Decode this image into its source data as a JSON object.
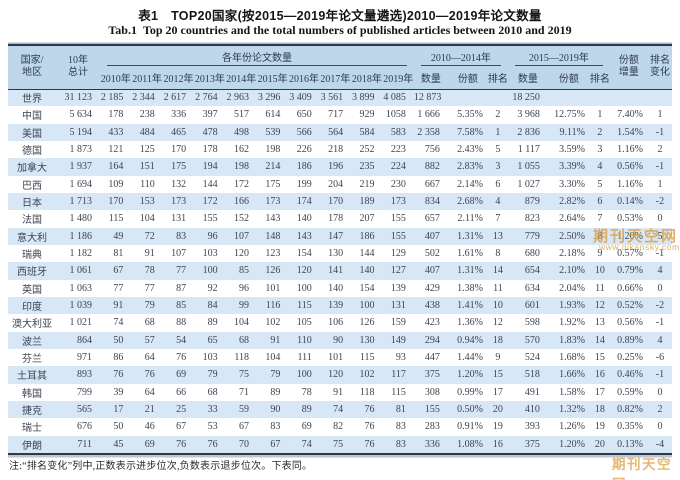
{
  "title": {
    "cn": "表1　TOP20国家(按2015—2019年论文量遴选)2010—2019年论文数量",
    "en": "Tab.1  Top 20 countries and the total numbers of published articles between 2010 and 2019"
  },
  "table": {
    "header": {
      "country_l1": "国家/",
      "country_l2": "地区",
      "total_l1": "10年",
      "total_l2": "总计",
      "yearly_group": "各年份论文数量",
      "years": [
        "2010年",
        "2011年",
        "2012年",
        "2013年",
        "2014年",
        "2015年",
        "2016年",
        "2017年",
        "2018年",
        "2019年"
      ],
      "p1_group": "2010—2014年",
      "p2_group": "2015—2019年",
      "count": "数量",
      "share": "份额",
      "rank": "排名",
      "share_inc_l1": "份额",
      "share_inc_l2": "增量",
      "rank_change_l1": "排名",
      "rank_change_l2": "变化"
    },
    "rows": [
      {
        "country": "世界",
        "total": "31 123",
        "years": [
          "2 185",
          "2 344",
          "2 617",
          "2 764",
          "2 963",
          "3 296",
          "3 409",
          "3 561",
          "3 899",
          "4 085"
        ],
        "p1_count": "12 873",
        "p1_share": "",
        "p1_rank": "",
        "p2_count": "18 250",
        "p2_share": "",
        "p2_rank": "",
        "share_inc": "",
        "rank_change": ""
      },
      {
        "country": "中国",
        "total": "5 634",
        "years": [
          "178",
          "238",
          "336",
          "397",
          "517",
          "614",
          "650",
          "717",
          "929",
          "1058"
        ],
        "p1_count": "1 666",
        "p1_share": "5.35%",
        "p1_rank": "2",
        "p2_count": "3 968",
        "p2_share": "12.75%",
        "p2_rank": "1",
        "share_inc": "7.40%",
        "rank_change": "1"
      },
      {
        "country": "美国",
        "total": "5 194",
        "years": [
          "433",
          "484",
          "465",
          "478",
          "498",
          "539",
          "566",
          "564",
          "584",
          "583"
        ],
        "p1_count": "2 358",
        "p1_share": "7.58%",
        "p1_rank": "1",
        "p2_count": "2 836",
        "p2_share": "9.11%",
        "p2_rank": "2",
        "share_inc": "1.54%",
        "rank_change": "-1"
      },
      {
        "country": "德国",
        "total": "1 873",
        "years": [
          "121",
          "125",
          "170",
          "178",
          "162",
          "198",
          "226",
          "218",
          "252",
          "223"
        ],
        "p1_count": "756",
        "p1_share": "2.43%",
        "p1_rank": "5",
        "p2_count": "1 117",
        "p2_share": "3.59%",
        "p2_rank": "3",
        "share_inc": "1.16%",
        "rank_change": "2"
      },
      {
        "country": "加拿大",
        "total": "1 937",
        "years": [
          "164",
          "151",
          "175",
          "194",
          "198",
          "214",
          "186",
          "196",
          "235",
          "224"
        ],
        "p1_count": "882",
        "p1_share": "2.83%",
        "p1_rank": "3",
        "p2_count": "1 055",
        "p2_share": "3.39%",
        "p2_rank": "4",
        "share_inc": "0.56%",
        "rank_change": "-1"
      },
      {
        "country": "巴西",
        "total": "1 694",
        "years": [
          "109",
          "110",
          "132",
          "144",
          "172",
          "175",
          "199",
          "204",
          "219",
          "230"
        ],
        "p1_count": "667",
        "p1_share": "2.14%",
        "p1_rank": "6",
        "p2_count": "1 027",
        "p2_share": "3.30%",
        "p2_rank": "5",
        "share_inc": "1.16%",
        "rank_change": "1"
      },
      {
        "country": "日本",
        "total": "1 713",
        "years": [
          "170",
          "153",
          "173",
          "172",
          "166",
          "173",
          "174",
          "170",
          "189",
          "173"
        ],
        "p1_count": "834",
        "p1_share": "2.68%",
        "p1_rank": "4",
        "p2_count": "879",
        "p2_share": "2.82%",
        "p2_rank": "6",
        "share_inc": "0.14%",
        "rank_change": "-2"
      },
      {
        "country": "法国",
        "total": "1 480",
        "years": [
          "115",
          "104",
          "131",
          "155",
          "152",
          "143",
          "140",
          "178",
          "207",
          "155"
        ],
        "p1_count": "657",
        "p1_share": "2.11%",
        "p1_rank": "7",
        "p2_count": "823",
        "p2_share": "2.64%",
        "p2_rank": "7",
        "share_inc": "0.53%",
        "rank_change": "0"
      },
      {
        "country": "意大利",
        "total": "1 186",
        "years": [
          "49",
          "72",
          "83",
          "96",
          "107",
          "148",
          "143",
          "147",
          "186",
          "155"
        ],
        "p1_count": "407",
        "p1_share": "1.31%",
        "p1_rank": "13",
        "p2_count": "779",
        "p2_share": "2.50%",
        "p2_rank": "8",
        "share_inc": "1.20%",
        "rank_change": "5"
      },
      {
        "country": "瑞典",
        "total": "1 182",
        "years": [
          "81",
          "91",
          "107",
          "103",
          "120",
          "123",
          "154",
          "130",
          "144",
          "129"
        ],
        "p1_count": "502",
        "p1_share": "1.61%",
        "p1_rank": "8",
        "p2_count": "680",
        "p2_share": "2.18%",
        "p2_rank": "9",
        "share_inc": "0.57%",
        "rank_change": "-1"
      },
      {
        "country": "西班牙",
        "total": "1 061",
        "years": [
          "67",
          "78",
          "77",
          "100",
          "85",
          "126",
          "120",
          "141",
          "140",
          "127"
        ],
        "p1_count": "407",
        "p1_share": "1.31%",
        "p1_rank": "14",
        "p2_count": "654",
        "p2_share": "2.10%",
        "p2_rank": "10",
        "share_inc": "0.79%",
        "rank_change": "4"
      },
      {
        "country": "英国",
        "total": "1 063",
        "years": [
          "77",
          "77",
          "87",
          "92",
          "96",
          "101",
          "100",
          "140",
          "154",
          "139"
        ],
        "p1_count": "429",
        "p1_share": "1.38%",
        "p1_rank": "11",
        "p2_count": "634",
        "p2_share": "2.04%",
        "p2_rank": "11",
        "share_inc": "0.66%",
        "rank_change": "0"
      },
      {
        "country": "印度",
        "total": "1 039",
        "years": [
          "91",
          "79",
          "85",
          "84",
          "99",
          "116",
          "115",
          "139",
          "100",
          "131"
        ],
        "p1_count": "438",
        "p1_share": "1.41%",
        "p1_rank": "10",
        "p2_count": "601",
        "p2_share": "1.93%",
        "p2_rank": "12",
        "share_inc": "0.52%",
        "rank_change": "-2"
      },
      {
        "country": "澳大利亚",
        "total": "1 021",
        "years": [
          "74",
          "68",
          "88",
          "89",
          "104",
          "102",
          "105",
          "106",
          "126",
          "159"
        ],
        "p1_count": "423",
        "p1_share": "1.36%",
        "p1_rank": "12",
        "p2_count": "598",
        "p2_share": "1.92%",
        "p2_rank": "13",
        "share_inc": "0.56%",
        "rank_change": "-1"
      },
      {
        "country": "波兰",
        "total": "864",
        "years": [
          "50",
          "57",
          "54",
          "65",
          "68",
          "91",
          "110",
          "90",
          "130",
          "149"
        ],
        "p1_count": "294",
        "p1_share": "0.94%",
        "p1_rank": "18",
        "p2_count": "570",
        "p2_share": "1.83%",
        "p2_rank": "14",
        "share_inc": "0.89%",
        "rank_change": "4"
      },
      {
        "country": "芬兰",
        "total": "971",
        "years": [
          "86",
          "64",
          "76",
          "103",
          "118",
          "104",
          "111",
          "101",
          "115",
          "93"
        ],
        "p1_count": "447",
        "p1_share": "1.44%",
        "p1_rank": "9",
        "p2_count": "524",
        "p2_share": "1.68%",
        "p2_rank": "15",
        "share_inc": "0.25%",
        "rank_change": "-6"
      },
      {
        "country": "土耳其",
        "total": "893",
        "years": [
          "76",
          "76",
          "69",
          "79",
          "75",
          "79",
          "100",
          "120",
          "102",
          "117"
        ],
        "p1_count": "375",
        "p1_share": "1.20%",
        "p1_rank": "15",
        "p2_count": "518",
        "p2_share": "1.66%",
        "p2_rank": "16",
        "share_inc": "0.46%",
        "rank_change": "-1"
      },
      {
        "country": "韩国",
        "total": "799",
        "years": [
          "39",
          "64",
          "66",
          "68",
          "71",
          "89",
          "78",
          "91",
          "118",
          "115"
        ],
        "p1_count": "308",
        "p1_share": "0.99%",
        "p1_rank": "17",
        "p2_count": "491",
        "p2_share": "1.58%",
        "p2_rank": "17",
        "share_inc": "0.59%",
        "rank_change": "0"
      },
      {
        "country": "捷克",
        "total": "565",
        "years": [
          "17",
          "21",
          "25",
          "33",
          "59",
          "90",
          "89",
          "74",
          "76",
          "81"
        ],
        "p1_count": "155",
        "p1_share": "0.50%",
        "p1_rank": "20",
        "p2_count": "410",
        "p2_share": "1.32%",
        "p2_rank": "18",
        "share_inc": "0.82%",
        "rank_change": "2"
      },
      {
        "country": "瑞士",
        "total": "676",
        "years": [
          "50",
          "46",
          "67",
          "53",
          "67",
          "83",
          "69",
          "82",
          "76",
          "83"
        ],
        "p1_count": "283",
        "p1_share": "0.91%",
        "p1_rank": "19",
        "p2_count": "393",
        "p2_share": "1.26%",
        "p2_rank": "19",
        "share_inc": "0.35%",
        "rank_change": "0"
      },
      {
        "country": "伊朗",
        "total": "711",
        "years": [
          "45",
          "69",
          "76",
          "76",
          "70",
          "67",
          "74",
          "75",
          "76",
          "83"
        ],
        "p1_count": "336",
        "p1_share": "1.08%",
        "p1_rank": "16",
        "p2_count": "375",
        "p2_share": "1.20%",
        "p2_rank": "20",
        "share_inc": "0.13%",
        "rank_change": "-4"
      }
    ]
  },
  "footnote": "注:“排名变化”列中,正数表示进步位次,负数表示退步位次。下表同。",
  "watermark": {
    "line1": "期刊天空网",
    "line2": "www.qikansky.com",
    "corner": "期刊天空网"
  },
  "colors": {
    "header_bg": "#bfd7eb",
    "stripe_bg": "#d7e7f5",
    "border": "#2a3950",
    "watermark": "#dd9f45"
  }
}
